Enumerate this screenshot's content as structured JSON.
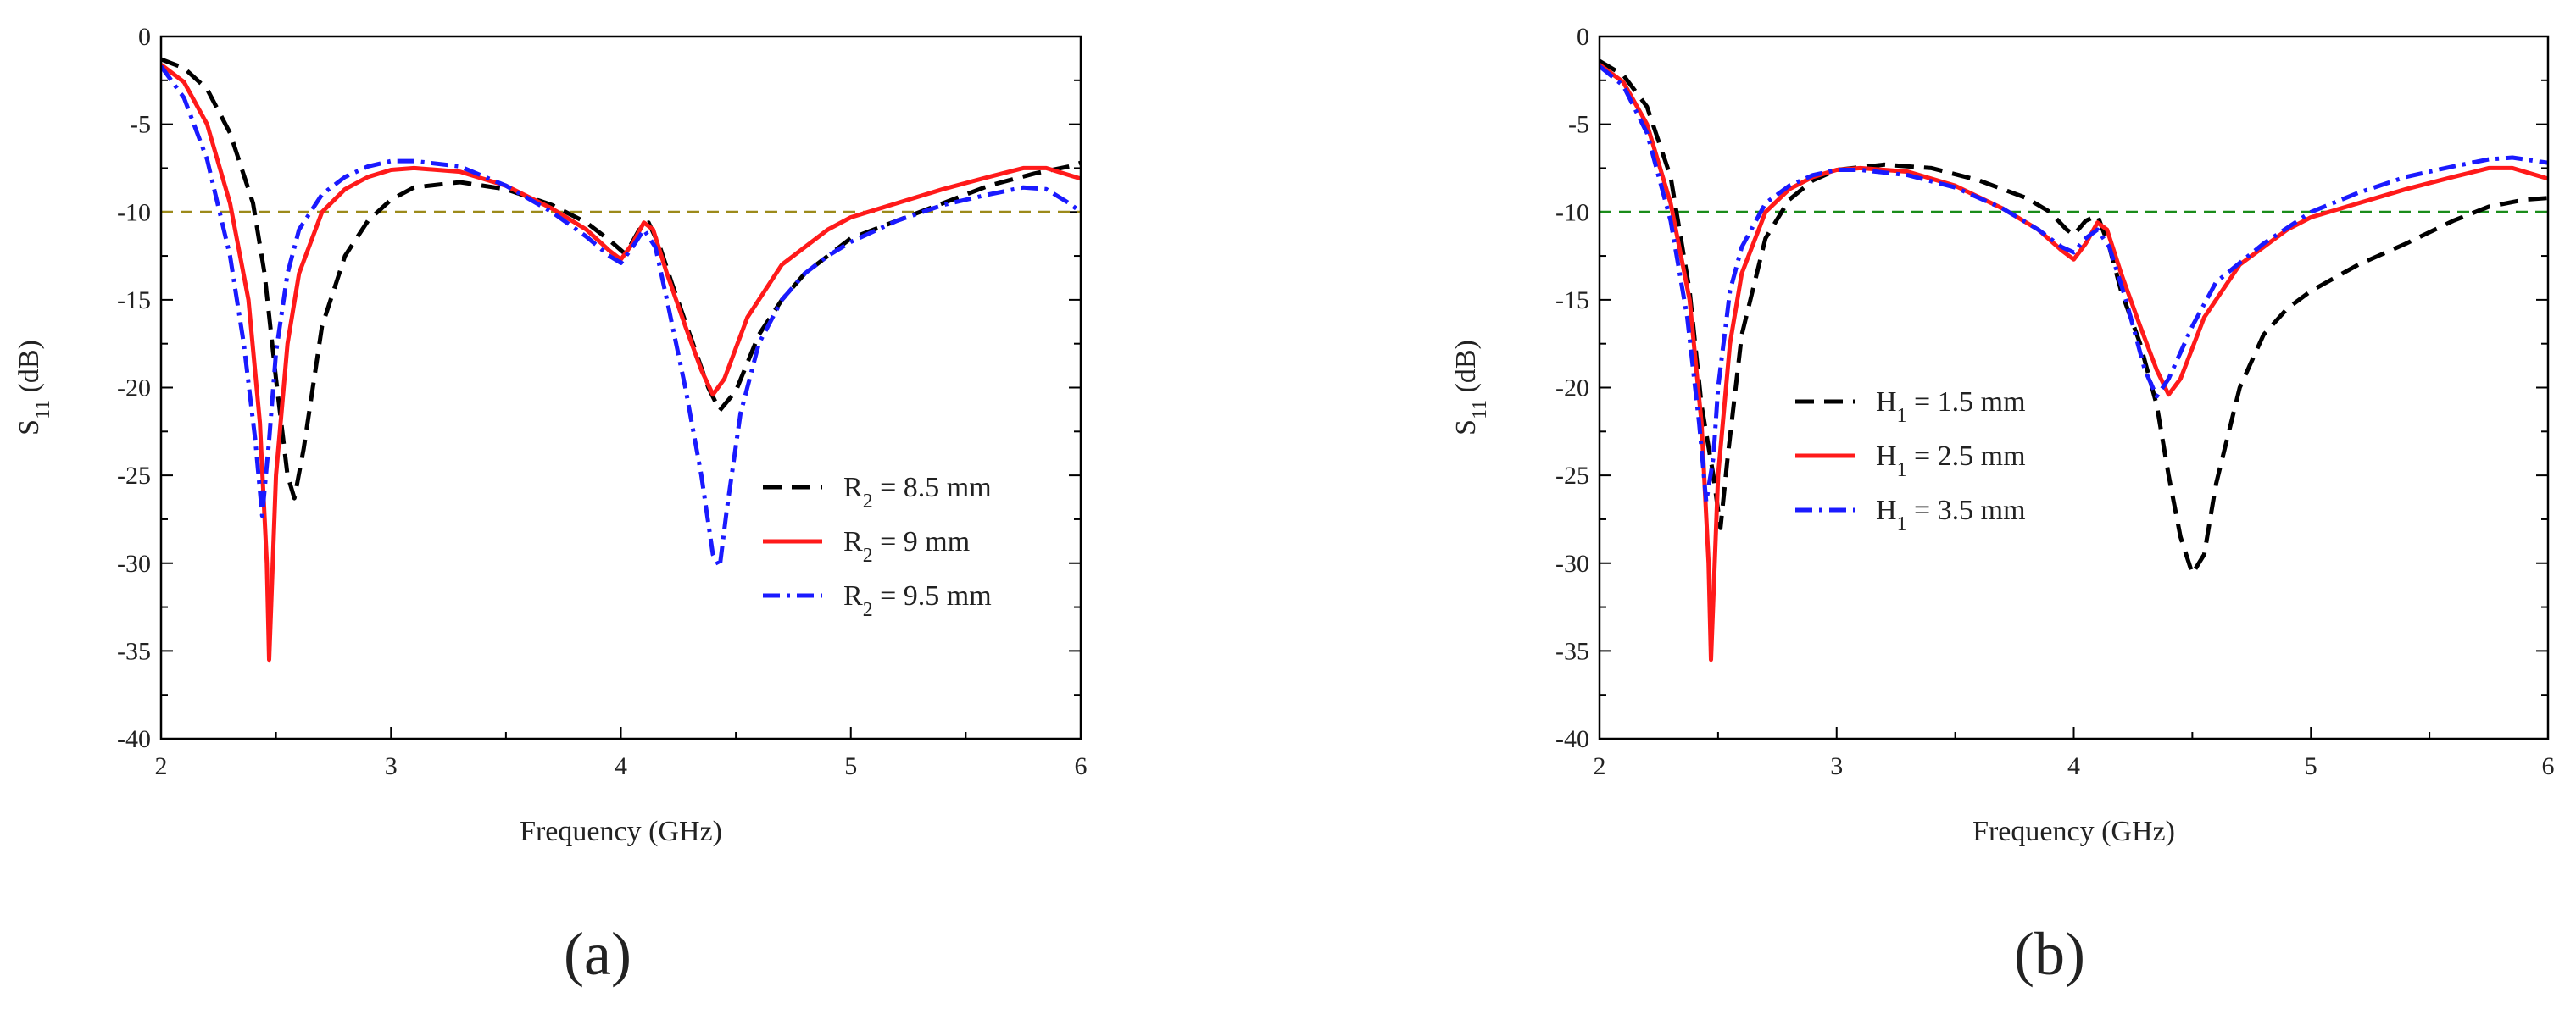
{
  "chart_data": [
    {
      "type": "line",
      "panel_label": "(a)",
      "xlabel": "Frequency (GHz)",
      "ylabel": "S11 (dB)",
      "ylabel_main": "S",
      "ylabel_sub": "11",
      "ylabel_unit": " (dB)",
      "xlim": [
        2,
        6
      ],
      "ylim": [
        -40,
        0
      ],
      "xticks": [
        2,
        3,
        4,
        5,
        6
      ],
      "yticks": [
        0,
        -5,
        -10,
        -15,
        -20,
        -25,
        -30,
        -35,
        -40
      ],
      "reference_line": {
        "y": -10,
        "color": "#9c8a1a"
      },
      "legend_position": "right",
      "series": [
        {
          "name": "R2 = 8.5 mm",
          "label_main": "R",
          "label_sub": "2",
          "label_rest": " = 8.5 mm",
          "color": "#000000",
          "style": "dash",
          "points": [
            [
              2.0,
              -1.3
            ],
            [
              2.1,
              -1.8
            ],
            [
              2.2,
              -3.0
            ],
            [
              2.3,
              -5.5
            ],
            [
              2.4,
              -9.5
            ],
            [
              2.45,
              -13.5
            ],
            [
              2.5,
              -19.5
            ],
            [
              2.55,
              -25.0
            ],
            [
              2.58,
              -26.3
            ],
            [
              2.62,
              -23.5
            ],
            [
              2.7,
              -16.5
            ],
            [
              2.8,
              -12.5
            ],
            [
              2.9,
              -10.5
            ],
            [
              3.0,
              -9.3
            ],
            [
              3.1,
              -8.6
            ],
            [
              3.3,
              -8.3
            ],
            [
              3.5,
              -8.7
            ],
            [
              3.7,
              -9.6
            ],
            [
              3.85,
              -10.6
            ],
            [
              3.95,
              -11.6
            ],
            [
              4.02,
              -12.4
            ],
            [
              4.08,
              -11.0
            ],
            [
              4.12,
              -10.6
            ],
            [
              4.17,
              -12.0
            ],
            [
              4.22,
              -14.0
            ],
            [
              4.3,
              -17.0
            ],
            [
              4.38,
              -20.0
            ],
            [
              4.43,
              -21.3
            ],
            [
              4.5,
              -20.2
            ],
            [
              4.6,
              -17.0
            ],
            [
              4.7,
              -15.0
            ],
            [
              4.8,
              -13.5
            ],
            [
              4.9,
              -12.5
            ],
            [
              5.0,
              -11.5
            ],
            [
              5.2,
              -10.5
            ],
            [
              5.4,
              -9.5
            ],
            [
              5.6,
              -8.5
            ],
            [
              5.8,
              -7.8
            ],
            [
              5.95,
              -7.4
            ],
            [
              6.0,
              -7.2
            ]
          ]
        },
        {
          "name": "R2 = 9 mm",
          "label_main": "R",
          "label_sub": "2",
          "label_rest": " = 9 mm",
          "color": "#ff1a1a",
          "style": "solid",
          "points": [
            [
              2.0,
              -1.6
            ],
            [
              2.1,
              -2.6
            ],
            [
              2.2,
              -5.0
            ],
            [
              2.3,
              -9.5
            ],
            [
              2.38,
              -15.0
            ],
            [
              2.43,
              -22.0
            ],
            [
              2.46,
              -30.0
            ],
            [
              2.47,
              -35.5
            ],
            [
              2.48,
              -32.0
            ],
            [
              2.5,
              -25.0
            ],
            [
              2.55,
              -17.5
            ],
            [
              2.6,
              -13.5
            ],
            [
              2.7,
              -10.0
            ],
            [
              2.8,
              -8.7
            ],
            [
              2.9,
              -8.0
            ],
            [
              3.0,
              -7.6
            ],
            [
              3.1,
              -7.5
            ],
            [
              3.3,
              -7.7
            ],
            [
              3.5,
              -8.5
            ],
            [
              3.7,
              -9.8
            ],
            [
              3.85,
              -11.0
            ],
            [
              3.95,
              -12.2
            ],
            [
              4.0,
              -12.7
            ],
            [
              4.05,
              -11.8
            ],
            [
              4.1,
              -10.6
            ],
            [
              4.14,
              -11.0
            ],
            [
              4.2,
              -13.5
            ],
            [
              4.28,
              -16.5
            ],
            [
              4.35,
              -19.0
            ],
            [
              4.4,
              -20.4
            ],
            [
              4.45,
              -19.5
            ],
            [
              4.55,
              -16.0
            ],
            [
              4.7,
              -13.0
            ],
            [
              4.9,
              -11.0
            ],
            [
              5.0,
              -10.3
            ],
            [
              5.2,
              -9.5
            ],
            [
              5.4,
              -8.7
            ],
            [
              5.6,
              -8.0
            ],
            [
              5.75,
              -7.5
            ],
            [
              5.85,
              -7.5
            ],
            [
              6.0,
              -8.1
            ]
          ]
        },
        {
          "name": "R2 = 9.5 mm",
          "label_main": "R",
          "label_sub": "2",
          "label_rest": " = 9.5 mm",
          "color": "#1a1aff",
          "style": "dashdot",
          "points": [
            [
              2.0,
              -1.7
            ],
            [
              2.1,
              -3.5
            ],
            [
              2.2,
              -7.0
            ],
            [
              2.3,
              -12.5
            ],
            [
              2.36,
              -17.5
            ],
            [
              2.41,
              -23.0
            ],
            [
              2.44,
              -27.3
            ],
            [
              2.47,
              -23.0
            ],
            [
              2.5,
              -18.0
            ],
            [
              2.55,
              -13.5
            ],
            [
              2.6,
              -11.0
            ],
            [
              2.7,
              -9.0
            ],
            [
              2.8,
              -8.0
            ],
            [
              2.9,
              -7.4
            ],
            [
              3.0,
              -7.1
            ],
            [
              3.1,
              -7.1
            ],
            [
              3.3,
              -7.4
            ],
            [
              3.5,
              -8.5
            ],
            [
              3.7,
              -10.0
            ],
            [
              3.85,
              -11.4
            ],
            [
              3.95,
              -12.5
            ],
            [
              4.0,
              -12.9
            ],
            [
              4.05,
              -12.0
            ],
            [
              4.1,
              -11.0
            ],
            [
              4.15,
              -12.0
            ],
            [
              4.2,
              -15.0
            ],
            [
              4.28,
              -20.0
            ],
            [
              4.35,
              -25.0
            ],
            [
              4.4,
              -29.5
            ],
            [
              4.43,
              -30.2
            ],
            [
              4.46,
              -27.0
            ],
            [
              4.52,
              -21.5
            ],
            [
              4.6,
              -17.5
            ],
            [
              4.7,
              -15.0
            ],
            [
              4.8,
              -13.5
            ],
            [
              4.9,
              -12.5
            ],
            [
              5.0,
              -11.7
            ],
            [
              5.2,
              -10.5
            ],
            [
              5.4,
              -9.6
            ],
            [
              5.6,
              -9.0
            ],
            [
              5.75,
              -8.6
            ],
            [
              5.85,
              -8.7
            ],
            [
              5.95,
              -9.5
            ],
            [
              6.0,
              -10.0
            ]
          ]
        }
      ]
    },
    {
      "type": "line",
      "panel_label": "(b)",
      "xlabel": "Frequency (GHz)",
      "ylabel": "S11 (dB)",
      "ylabel_main": "S",
      "ylabel_sub": "11",
      "ylabel_unit": " (dB)",
      "xlim": [
        2,
        6
      ],
      "ylim": [
        -40,
        0
      ],
      "xticks": [
        2,
        3,
        4,
        5,
        6
      ],
      "yticks": [
        0,
        -5,
        -10,
        -15,
        -20,
        -25,
        -30,
        -35,
        -40
      ],
      "reference_line": {
        "y": -10,
        "color": "#1a8c1a"
      },
      "legend_position": "center-left",
      "series": [
        {
          "name": "H1 = 1.5 mm",
          "label_main": "H",
          "label_sub": "1",
          "label_rest": " = 1.5 mm",
          "color": "#000000",
          "style": "dash",
          "points": [
            [
              2.0,
              -1.4
            ],
            [
              2.1,
              -2.2
            ],
            [
              2.2,
              -4.0
            ],
            [
              2.3,
              -8.0
            ],
            [
              2.38,
              -14.5
            ],
            [
              2.43,
              -21.0
            ],
            [
              2.48,
              -25.0
            ],
            [
              2.51,
              -28.0
            ],
            [
              2.54,
              -24.0
            ],
            [
              2.6,
              -17.0
            ],
            [
              2.7,
              -11.5
            ],
            [
              2.8,
              -9.3
            ],
            [
              2.9,
              -8.2
            ],
            [
              3.0,
              -7.6
            ],
            [
              3.2,
              -7.3
            ],
            [
              3.4,
              -7.5
            ],
            [
              3.6,
              -8.2
            ],
            [
              3.8,
              -9.2
            ],
            [
              3.9,
              -10.0
            ],
            [
              3.97,
              -11.0
            ],
            [
              4.0,
              -11.3
            ],
            [
              4.05,
              -10.5
            ],
            [
              4.1,
              -10.2
            ],
            [
              4.15,
              -12.0
            ],
            [
              4.2,
              -14.5
            ],
            [
              4.28,
              -17.5
            ],
            [
              4.35,
              -21.0
            ],
            [
              4.4,
              -25.0
            ],
            [
              4.45,
              -28.5
            ],
            [
              4.5,
              -30.6
            ],
            [
              4.55,
              -29.5
            ],
            [
              4.6,
              -25.5
            ],
            [
              4.7,
              -20.0
            ],
            [
              4.8,
              -17.0
            ],
            [
              4.9,
              -15.5
            ],
            [
              5.0,
              -14.5
            ],
            [
              5.2,
              -13.0
            ],
            [
              5.4,
              -11.8
            ],
            [
              5.6,
              -10.5
            ],
            [
              5.75,
              -9.7
            ],
            [
              5.9,
              -9.3
            ],
            [
              6.0,
              -9.2
            ]
          ]
        },
        {
          "name": "H1 = 2.5 mm",
          "label_main": "H",
          "label_sub": "1",
          "label_rest": " = 2.5 mm",
          "color": "#ff1a1a",
          "style": "solid",
          "points": [
            [
              2.0,
              -1.6
            ],
            [
              2.1,
              -2.6
            ],
            [
              2.2,
              -5.0
            ],
            [
              2.3,
              -9.5
            ],
            [
              2.38,
              -15.0
            ],
            [
              2.43,
              -22.0
            ],
            [
              2.46,
              -30.0
            ],
            [
              2.47,
              -35.5
            ],
            [
              2.48,
              -32.0
            ],
            [
              2.5,
              -25.0
            ],
            [
              2.55,
              -17.5
            ],
            [
              2.6,
              -13.5
            ],
            [
              2.7,
              -10.0
            ],
            [
              2.8,
              -8.7
            ],
            [
              2.9,
              -8.0
            ],
            [
              3.0,
              -7.6
            ],
            [
              3.1,
              -7.5
            ],
            [
              3.3,
              -7.7
            ],
            [
              3.5,
              -8.5
            ],
            [
              3.7,
              -9.8
            ],
            [
              3.85,
              -11.0
            ],
            [
              3.95,
              -12.2
            ],
            [
              4.0,
              -12.7
            ],
            [
              4.05,
              -11.8
            ],
            [
              4.1,
              -10.6
            ],
            [
              4.14,
              -11.0
            ],
            [
              4.2,
              -13.5
            ],
            [
              4.28,
              -16.5
            ],
            [
              4.35,
              -19.0
            ],
            [
              4.4,
              -20.4
            ],
            [
              4.45,
              -19.5
            ],
            [
              4.55,
              -16.0
            ],
            [
              4.7,
              -13.0
            ],
            [
              4.9,
              -11.0
            ],
            [
              5.0,
              -10.3
            ],
            [
              5.2,
              -9.5
            ],
            [
              5.4,
              -8.7
            ],
            [
              5.6,
              -8.0
            ],
            [
              5.75,
              -7.5
            ],
            [
              5.85,
              -7.5
            ],
            [
              6.0,
              -8.1
            ]
          ]
        },
        {
          "name": "H1 = 3.5 mm",
          "label_main": "H",
          "label_sub": "1",
          "label_rest": " = 3.5 mm",
          "color": "#1a1aff",
          "style": "dashdot",
          "points": [
            [
              2.0,
              -1.7
            ],
            [
              2.1,
              -2.8
            ],
            [
              2.2,
              -5.5
            ],
            [
              2.3,
              -10.5
            ],
            [
              2.37,
              -16.0
            ],
            [
              2.42,
              -22.0
            ],
            [
              2.45,
              -26.5
            ],
            [
              2.48,
              -24.0
            ],
            [
              2.5,
              -20.0
            ],
            [
              2.55,
              -14.5
            ],
            [
              2.6,
              -12.0
            ],
            [
              2.7,
              -9.5
            ],
            [
              2.8,
              -8.5
            ],
            [
              2.9,
              -7.9
            ],
            [
              3.0,
              -7.6
            ],
            [
              3.1,
              -7.6
            ],
            [
              3.3,
              -7.9
            ],
            [
              3.5,
              -8.6
            ],
            [
              3.7,
              -9.8
            ],
            [
              3.85,
              -11.0
            ],
            [
              3.95,
              -12.0
            ],
            [
              4.0,
              -12.3
            ],
            [
              4.05,
              -11.5
            ],
            [
              4.1,
              -11.0
            ],
            [
              4.15,
              -12.0
            ],
            [
              4.22,
              -15.0
            ],
            [
              4.3,
              -19.0
            ],
            [
              4.35,
              -20.5
            ],
            [
              4.4,
              -19.5
            ],
            [
              4.5,
              -16.5
            ],
            [
              4.6,
              -14.0
            ],
            [
              4.8,
              -11.8
            ],
            [
              5.0,
              -10.0
            ],
            [
              5.2,
              -8.9
            ],
            [
              5.4,
              -8.0
            ],
            [
              5.6,
              -7.4
            ],
            [
              5.75,
              -7.0
            ],
            [
              5.85,
              -6.9
            ],
            [
              6.0,
              -7.2
            ]
          ]
        }
      ]
    }
  ]
}
